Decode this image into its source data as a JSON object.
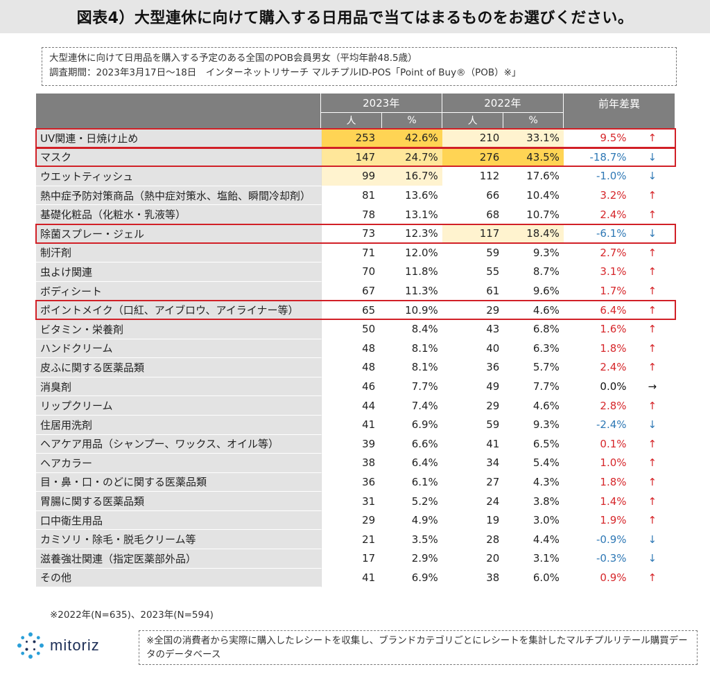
{
  "title": "図表4）大型連休に向けて購入する日用品で当てはまるものをお選びください。",
  "info": {
    "line1": "大型連休に向けて日用品を購入する予定のある全国のPOB会員男女（平均年齢48.5歳）",
    "line2": "調査期間：2023年3月17日～18日　インターネットリサーチ マルチプルID-POS「Point of Buy®（POB）※」"
  },
  "table": {
    "year_a": "2023年",
    "year_b": "2022年",
    "diff_header": "前年差異",
    "col_people": "人",
    "col_pct": "%",
    "rows": [
      {
        "label": "UV関連・日焼け止め",
        "a_n": "253",
        "a_p": "42.6%",
        "b_n": "210",
        "b_p": "33.1%",
        "diff": "9.5%",
        "arrow": "↑"
      },
      {
        "label": "マスク",
        "a_n": "147",
        "a_p": "24.7%",
        "b_n": "276",
        "b_p": "43.5%",
        "diff": "-18.7%",
        "arrow": "↓"
      },
      {
        "label": "ウエットティッシュ",
        "a_n": "99",
        "a_p": "16.7%",
        "b_n": "112",
        "b_p": "17.6%",
        "diff": "-1.0%",
        "arrow": "↓"
      },
      {
        "label": "熱中症予防対策商品（熱中症対策水、塩飴、瞬間冷却剤）",
        "a_n": "81",
        "a_p": "13.6%",
        "b_n": "66",
        "b_p": "10.4%",
        "diff": "3.2%",
        "arrow": "↑"
      },
      {
        "label": "基礎化粧品（化粧水・乳液等）",
        "a_n": "78",
        "a_p": "13.1%",
        "b_n": "68",
        "b_p": "10.7%",
        "diff": "2.4%",
        "arrow": "↑"
      },
      {
        "label": "除菌スプレー・ジェル",
        "a_n": "73",
        "a_p": "12.3%",
        "b_n": "117",
        "b_p": "18.4%",
        "diff": "-6.1%",
        "arrow": "↓"
      },
      {
        "label": "制汗剤",
        "a_n": "71",
        "a_p": "12.0%",
        "b_n": "59",
        "b_p": "9.3%",
        "diff": "2.7%",
        "arrow": "↑"
      },
      {
        "label": "虫よけ関連",
        "a_n": "70",
        "a_p": "11.8%",
        "b_n": "55",
        "b_p": "8.7%",
        "diff": "3.1%",
        "arrow": "↑"
      },
      {
        "label": "ボディシート",
        "a_n": "67",
        "a_p": "11.3%",
        "b_n": "61",
        "b_p": "9.6%",
        "diff": "1.7%",
        "arrow": "↑"
      },
      {
        "label": "ポイントメイク（口紅、アイブロウ、アイライナー等）",
        "a_n": "65",
        "a_p": "10.9%",
        "b_n": "29",
        "b_p": "4.6%",
        "diff": "6.4%",
        "arrow": "↑"
      },
      {
        "label": "ビタミン・栄養剤",
        "a_n": "50",
        "a_p": "8.4%",
        "b_n": "43",
        "b_p": "6.8%",
        "diff": "1.6%",
        "arrow": "↑"
      },
      {
        "label": "ハンドクリーム",
        "a_n": "48",
        "a_p": "8.1%",
        "b_n": "40",
        "b_p": "6.3%",
        "diff": "1.8%",
        "arrow": "↑"
      },
      {
        "label": "皮ふに関する医薬品類",
        "a_n": "48",
        "a_p": "8.1%",
        "b_n": "36",
        "b_p": "5.7%",
        "diff": "2.4%",
        "arrow": "↑"
      },
      {
        "label": "消臭剤",
        "a_n": "46",
        "a_p": "7.7%",
        "b_n": "49",
        "b_p": "7.7%",
        "diff": "0.0%",
        "arrow": "→"
      },
      {
        "label": "リップクリーム",
        "a_n": "44",
        "a_p": "7.4%",
        "b_n": "29",
        "b_p": "4.6%",
        "diff": "2.8%",
        "arrow": "↑"
      },
      {
        "label": "住居用洗剤",
        "a_n": "41",
        "a_p": "6.9%",
        "b_n": "59",
        "b_p": "9.3%",
        "diff": "-2.4%",
        "arrow": "↓"
      },
      {
        "label": "ヘアケア用品（シャンプー、ワックス、オイル等）",
        "a_n": "39",
        "a_p": "6.6%",
        "b_n": "41",
        "b_p": "6.5%",
        "diff": "0.1%",
        "arrow": "↑"
      },
      {
        "label": "ヘアカラー",
        "a_n": "38",
        "a_p": "6.4%",
        "b_n": "34",
        "b_p": "5.4%",
        "diff": "1.0%",
        "arrow": "↑"
      },
      {
        "label": "目・鼻・口・のどに関する医薬品類",
        "a_n": "36",
        "a_p": "6.1%",
        "b_n": "27",
        "b_p": "4.3%",
        "diff": "1.8%",
        "arrow": "↑"
      },
      {
        "label": "胃腸に関する医薬品類",
        "a_n": "31",
        "a_p": "5.2%",
        "b_n": "24",
        "b_p": "3.8%",
        "diff": "1.4%",
        "arrow": "↑"
      },
      {
        "label": "口中衛生用品",
        "a_n": "29",
        "a_p": "4.9%",
        "b_n": "19",
        "b_p": "3.0%",
        "diff": "1.9%",
        "arrow": "↑"
      },
      {
        "label": "カミソリ・除毛・脱毛クリーム等",
        "a_n": "21",
        "a_p": "3.5%",
        "b_n": "28",
        "b_p": "4.4%",
        "diff": "-0.9%",
        "arrow": "↓"
      },
      {
        "label": "滋養強壮関連（指定医薬部外品）",
        "a_n": "17",
        "a_p": "2.9%",
        "b_n": "20",
        "b_p": "3.1%",
        "diff": "-0.3%",
        "arrow": "↓"
      },
      {
        "label": "その他",
        "a_n": "41",
        "a_p": "6.9%",
        "b_n": "38",
        "b_p": "6.0%",
        "diff": "0.9%",
        "arrow": "↑"
      }
    ]
  },
  "note": "※2022年(N=635)、2023年(N=594)",
  "logo_text": "mitoriz",
  "footer": "※全国の消費者から実際に購入したレシートを収集し、ブランドカテゴリごとにレシートを集計したマルチプルリテール購買データのデータベース",
  "colors": {
    "highlight_strong": "#ffd454",
    "highlight_mid": "#ffe79a",
    "highlight_light": "#fff3cf",
    "positive": "#d6262a",
    "negative": "#2e78b5",
    "box": "#d11f26",
    "header_gray": "#7f7f7f",
    "logo_blue": "#1d2f57"
  }
}
